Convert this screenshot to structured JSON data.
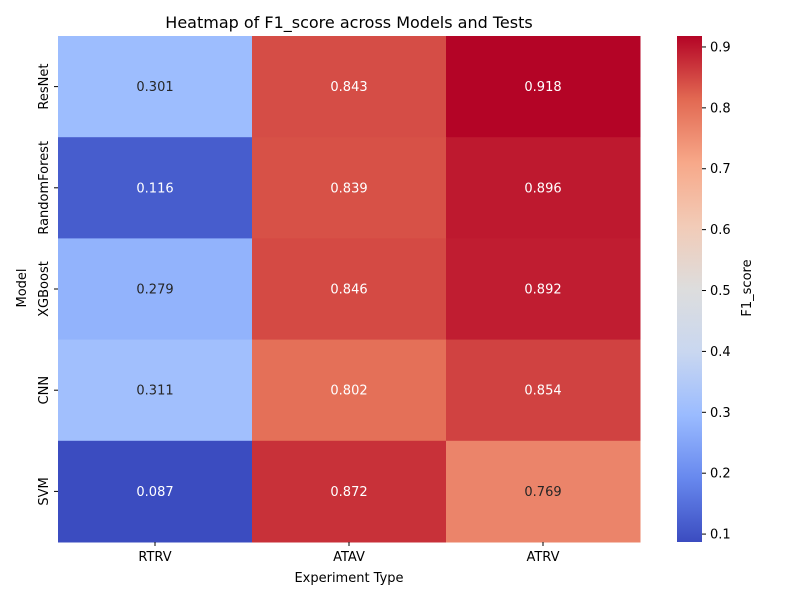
{
  "chart_data": {
    "type": "heatmap",
    "title": "Heatmap of F1_score across Models and Tests",
    "xlabel": "Experiment Type",
    "ylabel": "Model",
    "x_categories": [
      "RTRV",
      "ATAV",
      "ATRV"
    ],
    "y_categories": [
      "ResNet",
      "RandomForest",
      "XGBoost",
      "CNN",
      "SVM"
    ],
    "values": [
      [
        0.301,
        0.843,
        0.918
      ],
      [
        0.116,
        0.839,
        0.896
      ],
      [
        0.279,
        0.846,
        0.892
      ],
      [
        0.311,
        0.802,
        0.854
      ],
      [
        0.087,
        0.872,
        0.769
      ]
    ],
    "value_labels": [
      [
        "0.301",
        "0.843",
        "0.918"
      ],
      [
        "0.116",
        "0.839",
        "0.896"
      ],
      [
        "0.279",
        "0.846",
        "0.892"
      ],
      [
        "0.311",
        "0.802",
        "0.854"
      ],
      [
        "0.087",
        "0.872",
        "0.769"
      ]
    ],
    "colorbar": {
      "label": "F1_score",
      "vmin": 0.087,
      "vmax": 0.918,
      "ticks": [
        0.1,
        0.2,
        0.3,
        0.4,
        0.5,
        0.6,
        0.7,
        0.8,
        0.9
      ],
      "tick_labels": [
        "0.1",
        "0.2",
        "0.3",
        "0.4",
        "0.5",
        "0.6",
        "0.7",
        "0.8",
        "0.9"
      ]
    },
    "colormap": "coolwarm",
    "colormap_stops": [
      "#3b4cc0",
      "#6788ee",
      "#9abbff",
      "#c9d7f0",
      "#dddddd",
      "#f2cbb7",
      "#f7a889",
      "#e26952",
      "#b40426"
    ],
    "grid": false,
    "legend": "none"
  }
}
